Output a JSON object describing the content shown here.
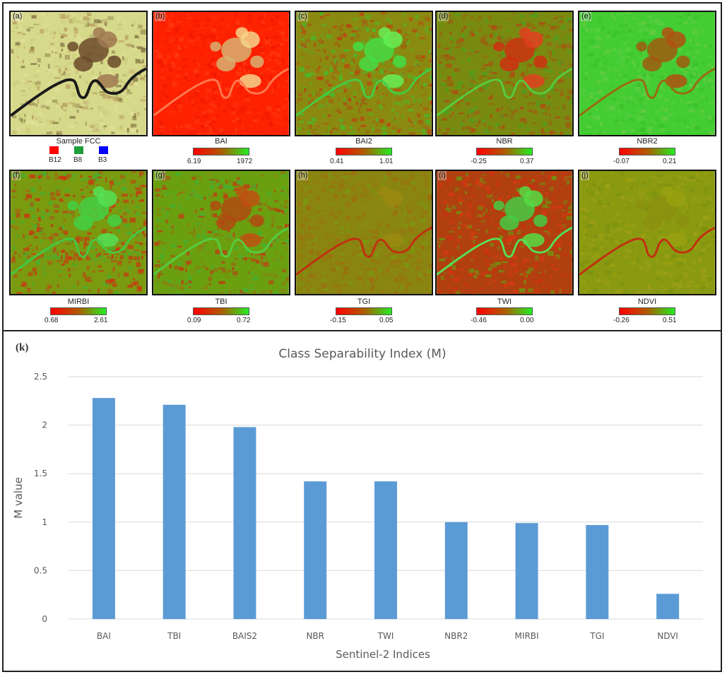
{
  "panels": [
    {
      "id": "a",
      "label": "(a)",
      "caption": "Sample FCC",
      "min": "",
      "max": "",
      "style": "fcc"
    },
    {
      "id": "b",
      "label": "(b)",
      "caption": "BAI",
      "min": "6.19",
      "max": "1972",
      "style": "bai"
    },
    {
      "id": "c",
      "label": "(c)",
      "caption": "BAI2",
      "min": "0.41",
      "max": "1.01",
      "style": "bai2"
    },
    {
      "id": "d",
      "label": "(d)",
      "caption": "NBR",
      "min": "-0.25",
      "max": "0.37",
      "style": "nbr"
    },
    {
      "id": "e",
      "label": "(e)",
      "caption": "NBR2",
      "min": "-0.07",
      "max": "0.21",
      "style": "nbr2"
    },
    {
      "id": "f",
      "label": "(f)",
      "caption": "MIRBI",
      "min": "0.68",
      "max": "2.61",
      "style": "mirbi"
    },
    {
      "id": "g",
      "label": "(g)",
      "caption": "TBI",
      "min": "0.09",
      "max": "0.72",
      "style": "tbi"
    },
    {
      "id": "h",
      "label": "(h)",
      "caption": "TGI",
      "min": "-0.15",
      "max": "0.05",
      "style": "tgi"
    },
    {
      "id": "i",
      "label": "(i)",
      "caption": "TWI",
      "min": "-0.46",
      "max": "0.00",
      "style": "twi"
    },
    {
      "id": "j",
      "label": "(j)",
      "caption": "NDVI",
      "min": "-0.26",
      "max": "0.51",
      "style": "ndvi"
    }
  ],
  "fcc_bands": [
    {
      "name": "B12",
      "color": "#ff0000"
    },
    {
      "name": "B8",
      "color": "#1e9e3a"
    },
    {
      "name": "B3",
      "color": "#0000ff"
    }
  ],
  "chart_panel_label": "(k)",
  "chart_data": {
    "type": "bar",
    "title": "Class Separability Index (M)",
    "xlabel": "Sentinel-2 Indices",
    "ylabel": "M value",
    "categories": [
      "BAI",
      "TBI",
      "BAIS2",
      "NBR",
      "TWI",
      "NBR2",
      "MIRBI",
      "TGI",
      "NDVI"
    ],
    "values": [
      2.28,
      2.21,
      1.98,
      1.42,
      1.42,
      1.0,
      0.99,
      0.97,
      0.26
    ],
    "ylim": [
      0,
      2.5
    ],
    "yticks": [
      "0",
      "0.5",
      "1",
      "1.5",
      "2",
      "2.5"
    ],
    "bar_color": "#5b9bd5",
    "grid": true,
    "legend": "none"
  }
}
